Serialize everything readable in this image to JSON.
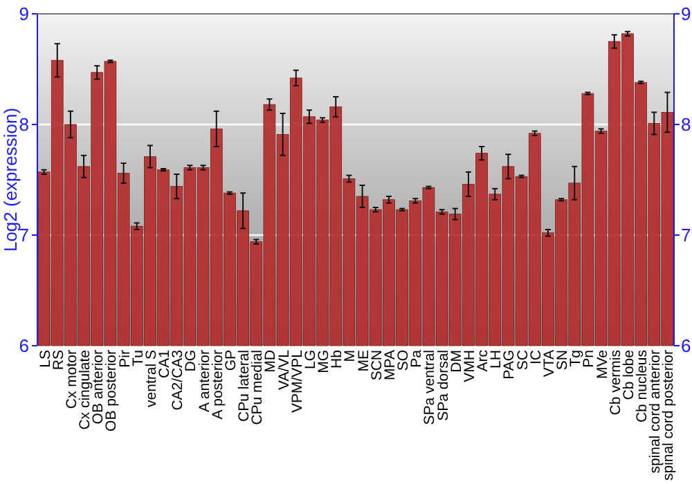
{
  "chart_data": {
    "type": "bar",
    "ylabel": "Log2 (expression)",
    "categories": [
      "LS",
      "RS",
      "Cx motor",
      "Cx cingulate",
      "OB anterior",
      "OB posterior",
      "Pir",
      "Tu",
      "ventral S",
      "CA1",
      "CA2/CA3",
      "DG",
      "A anterior",
      "A posterior",
      "GP",
      "CPu lateral",
      "CPu medial",
      "MD",
      "VA/VL",
      "VPM/VPL",
      "LG",
      "MG",
      "Hb",
      "M",
      "ME",
      "SCN",
      "MPA",
      "SO",
      "Pa",
      "SPa ventral",
      "SPa dorsal",
      "DM",
      "VMH",
      "Arc",
      "LH",
      "PAG",
      "SC",
      "IC",
      "VTA",
      "SN",
      "Tg",
      "Pn",
      "MVe",
      "Cb vermis",
      "Cb lobe",
      "Cb nucleus",
      "spinal cord anterior",
      "spinal cord posterior"
    ],
    "values": [
      7.57,
      8.58,
      8.0,
      7.62,
      8.47,
      8.57,
      7.56,
      7.08,
      7.71,
      7.59,
      7.44,
      7.61,
      7.61,
      7.96,
      7.38,
      7.22,
      6.94,
      8.18,
      7.91,
      8.42,
      8.07,
      8.04,
      8.16,
      7.51,
      7.35,
      7.23,
      7.32,
      7.23,
      7.31,
      7.43,
      7.21,
      7.19,
      7.46,
      7.74,
      7.37,
      7.62,
      7.53,
      7.92,
      7.02,
      7.32,
      7.47,
      8.28,
      7.94,
      8.75,
      8.82,
      8.38,
      8.01,
      8.11
    ],
    "errors": [
      0.02,
      0.15,
      0.12,
      0.1,
      0.06,
      0.01,
      0.09,
      0.03,
      0.1,
      0.01,
      0.11,
      0.02,
      0.02,
      0.16,
      0.01,
      0.16,
      0.02,
      0.05,
      0.19,
      0.07,
      0.06,
      0.02,
      0.09,
      0.03,
      0.1,
      0.02,
      0.03,
      0.01,
      0.02,
      0.01,
      0.02,
      0.05,
      0.11,
      0.06,
      0.05,
      0.11,
      0.01,
      0.02,
      0.03,
      0.01,
      0.15,
      0.01,
      0.02,
      0.06,
      0.02,
      0.01,
      0.1,
      0.18
    ],
    "color": "#b33333",
    "ylim": [
      6,
      9
    ],
    "yticks": [
      6,
      7,
      8,
      9
    ],
    "y2lim": [
      6,
      9
    ],
    "y2ticks": [
      6,
      7,
      8,
      9
    ],
    "grid": "y"
  }
}
